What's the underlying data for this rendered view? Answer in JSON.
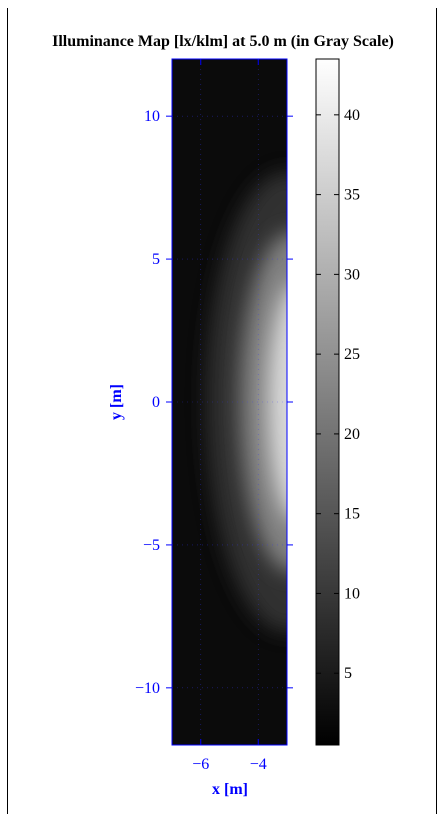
{
  "chart_data": [
    {
      "type": "heatmap",
      "title": "Illuminance Map [lx/klm] at 5.0 m (in Gray Scale)",
      "xlabel": "x [m]",
      "ylabel": "y [m]",
      "xlim": [
        -7.0,
        -3.0
      ],
      "ylim": [
        -12.0,
        12.0
      ],
      "x_ticks": [
        -6,
        -4
      ],
      "x_tick_labels": [
        "−6",
        "−4"
      ],
      "y_ticks": [
        10,
        5,
        0,
        -5,
        -10
      ],
      "y_tick_labels": [
        "10",
        "5",
        "0",
        "−5",
        "−10"
      ],
      "colormap": "gray",
      "grid": true,
      "field": {
        "description_units": "lx/klm",
        "peak_value": 43,
        "peak_at": {
          "x": -3.0,
          "y": 0.0
        },
        "lobe_extent_y": [
          -8.0,
          8.0
        ]
      },
      "colorbar": {
        "range": [
          0.5,
          43.5
        ],
        "ticks": [
          40,
          35,
          30,
          25,
          20,
          15,
          10,
          5
        ],
        "tick_labels": [
          "40",
          "35",
          "30",
          "25",
          "20",
          "15",
          "10",
          "5"
        ]
      }
    }
  ]
}
